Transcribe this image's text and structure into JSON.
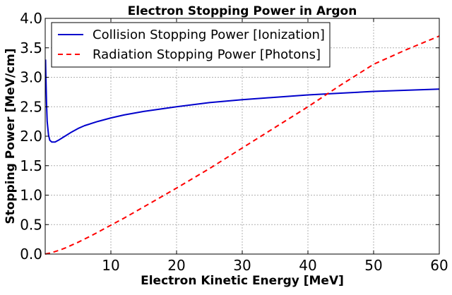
{
  "chart_data": {
    "type": "line",
    "title": "Electron Stopping Power in Argon",
    "xlabel": "Electron Kinetic Energy [MeV]",
    "ylabel": "Stopping Power [MeV/cm]",
    "xlim": [
      0,
      60
    ],
    "ylim": [
      0,
      4.0
    ],
    "xticks": [
      10,
      20,
      30,
      40,
      50,
      60
    ],
    "xtick_labels": [
      "10",
      "20",
      "30",
      "40",
      "50",
      "60"
    ],
    "yticks": [
      0,
      0.5,
      1.0,
      1.5,
      2.0,
      2.5,
      3.0,
      3.5,
      4.0
    ],
    "ytick_labels": [
      "0.0",
      "0.5",
      "1.0",
      "1.5",
      "2.0",
      "2.5",
      "3.0",
      "3.5",
      "4.0"
    ],
    "grid": true,
    "legend_position": "top-left",
    "series": [
      {
        "name": "Collision Stopping Power [Ionization]",
        "color": "#0000cc",
        "style": "solid",
        "x": [
          0.05,
          0.1,
          0.2,
          0.3,
          0.5,
          0.7,
          1.0,
          1.5,
          2,
          3,
          4,
          5,
          6,
          8,
          10,
          12,
          15,
          20,
          25,
          30,
          35,
          40,
          45,
          50,
          55,
          60
        ],
        "y": [
          3.3,
          3.05,
          2.55,
          2.25,
          2.02,
          1.93,
          1.9,
          1.9,
          1.93,
          2.0,
          2.07,
          2.13,
          2.18,
          2.25,
          2.31,
          2.36,
          2.42,
          2.5,
          2.57,
          2.62,
          2.66,
          2.7,
          2.73,
          2.76,
          2.78,
          2.8
        ]
      },
      {
        "name": "Radiation Stopping Power [Photons]",
        "color": "#ff0000",
        "style": "dashed",
        "x": [
          0,
          1,
          2,
          3,
          5,
          7,
          10,
          12,
          15,
          20,
          25,
          30,
          35,
          40,
          45,
          50,
          55,
          60
        ],
        "y": [
          0,
          0.025,
          0.06,
          0.1,
          0.2,
          0.31,
          0.49,
          0.61,
          0.8,
          1.12,
          1.45,
          1.8,
          2.15,
          2.5,
          2.87,
          3.22,
          3.47,
          3.7
        ]
      }
    ]
  }
}
